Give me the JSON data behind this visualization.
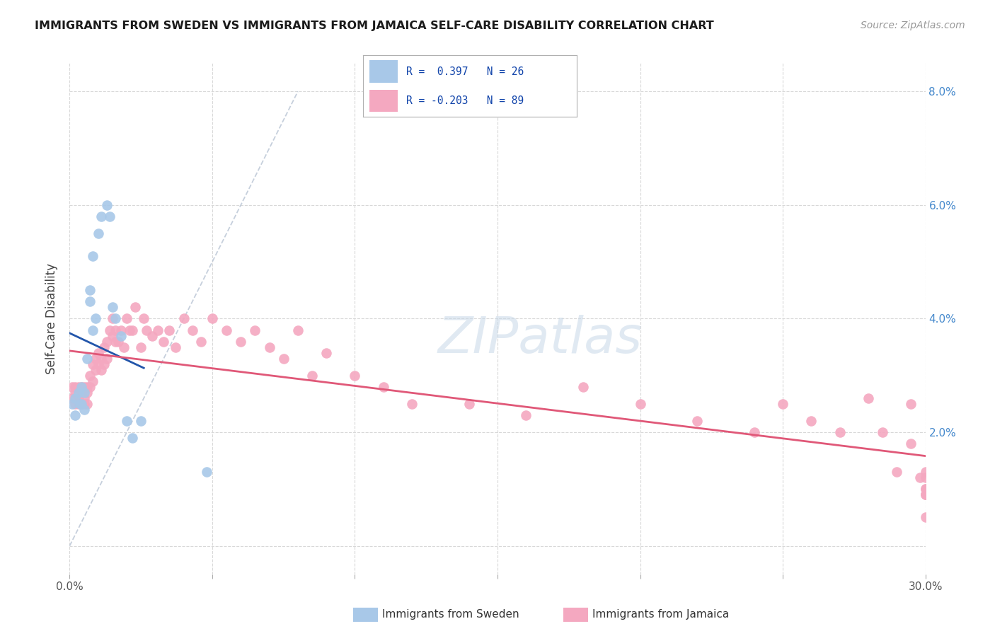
{
  "title": "IMMIGRANTS FROM SWEDEN VS IMMIGRANTS FROM JAMAICA SELF-CARE DISABILITY CORRELATION CHART",
  "source": "Source: ZipAtlas.com",
  "ylabel": "Self-Care Disability",
  "sweden_color": "#a8c8e8",
  "jamaica_color": "#f4a8c0",
  "sweden_line_color": "#2255aa",
  "jamaica_line_color": "#e05878",
  "diagonal_color": "#b8c4d4",
  "background_color": "#ffffff",
  "grid_color": "#d8d8d8",
  "right_tick_color": "#4488cc",
  "xlim": [
    0.0,
    0.3
  ],
  "ylim": [
    -0.005,
    0.085
  ],
  "xtick_pos": [
    0.0,
    0.05,
    0.1,
    0.15,
    0.2,
    0.25,
    0.3
  ],
  "xtick_labels": [
    "0.0%",
    "",
    "",
    "",
    "",
    "",
    "30.0%"
  ],
  "ytick_pos": [
    0.0,
    0.02,
    0.04,
    0.06,
    0.08
  ],
  "ytick_right_labels": [
    "",
    "2.0%",
    "4.0%",
    "6.0%",
    "8.0%"
  ],
  "sweden_x": [
    0.001,
    0.002,
    0.002,
    0.003,
    0.0035,
    0.004,
    0.004,
    0.005,
    0.005,
    0.006,
    0.007,
    0.007,
    0.008,
    0.008,
    0.009,
    0.01,
    0.011,
    0.013,
    0.014,
    0.015,
    0.016,
    0.018,
    0.02,
    0.022,
    0.025,
    0.048
  ],
  "sweden_y": [
    0.025,
    0.026,
    0.023,
    0.027,
    0.025,
    0.028,
    0.025,
    0.027,
    0.024,
    0.033,
    0.043,
    0.045,
    0.051,
    0.038,
    0.04,
    0.055,
    0.058,
    0.06,
    0.058,
    0.042,
    0.04,
    0.037,
    0.022,
    0.019,
    0.022,
    0.013
  ],
  "jamaica_x": [
    0.001,
    0.001,
    0.002,
    0.002,
    0.002,
    0.003,
    0.003,
    0.003,
    0.004,
    0.004,
    0.004,
    0.005,
    0.005,
    0.005,
    0.006,
    0.006,
    0.006,
    0.007,
    0.007,
    0.008,
    0.008,
    0.009,
    0.009,
    0.01,
    0.01,
    0.011,
    0.011,
    0.012,
    0.012,
    0.013,
    0.013,
    0.014,
    0.015,
    0.015,
    0.016,
    0.016,
    0.017,
    0.018,
    0.019,
    0.02,
    0.021,
    0.022,
    0.023,
    0.025,
    0.026,
    0.027,
    0.029,
    0.031,
    0.033,
    0.035,
    0.037,
    0.04,
    0.043,
    0.046,
    0.05,
    0.055,
    0.06,
    0.065,
    0.07,
    0.075,
    0.08,
    0.085,
    0.09,
    0.1,
    0.11,
    0.12,
    0.14,
    0.16,
    0.18,
    0.2,
    0.22,
    0.24,
    0.25,
    0.26,
    0.27,
    0.28,
    0.285,
    0.29,
    0.295,
    0.295,
    0.298,
    0.3,
    0.3,
    0.3,
    0.3,
    0.3,
    0.3,
    0.3,
    0.3
  ],
  "jamaica_y": [
    0.026,
    0.028,
    0.027,
    0.025,
    0.028,
    0.026,
    0.028,
    0.025,
    0.027,
    0.025,
    0.028,
    0.026,
    0.028,
    0.025,
    0.027,
    0.028,
    0.025,
    0.03,
    0.028,
    0.032,
    0.029,
    0.031,
    0.033,
    0.034,
    0.032,
    0.033,
    0.031,
    0.035,
    0.032,
    0.036,
    0.033,
    0.038,
    0.04,
    0.037,
    0.036,
    0.038,
    0.036,
    0.038,
    0.035,
    0.04,
    0.038,
    0.038,
    0.042,
    0.035,
    0.04,
    0.038,
    0.037,
    0.038,
    0.036,
    0.038,
    0.035,
    0.04,
    0.038,
    0.036,
    0.04,
    0.038,
    0.036,
    0.038,
    0.035,
    0.033,
    0.038,
    0.03,
    0.034,
    0.03,
    0.028,
    0.025,
    0.025,
    0.023,
    0.028,
    0.025,
    0.022,
    0.02,
    0.025,
    0.022,
    0.02,
    0.026,
    0.02,
    0.013,
    0.025,
    0.018,
    0.012,
    0.013,
    0.01,
    0.01,
    0.012,
    0.009,
    0.009,
    0.005,
    0.009
  ]
}
